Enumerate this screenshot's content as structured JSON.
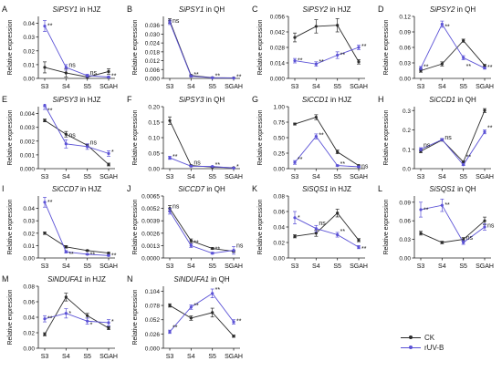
{
  "figure": {
    "x_categories": [
      "S3",
      "S4",
      "S5",
      "SGAH"
    ],
    "y_axis_label": "Relative expression",
    "colors": {
      "CK": "#2b2b2b",
      "rUV-B": "#5b52d6"
    },
    "legend": [
      {
        "key": "CK",
        "label": "CK"
      },
      {
        "key": "rUV-B",
        "label": "rUV-B"
      }
    ]
  },
  "chart_data": [
    {
      "type": "line",
      "letter": "A",
      "gene": "SiPSY1",
      "suffix": " in HJZ",
      "yticks": [
        "0.00",
        "0.01",
        "0.02",
        "0.03",
        "0.04"
      ],
      "ylim": [
        0,
        0.045
      ],
      "series": [
        {
          "name": "CK",
          "values": [
            0.008,
            0.004,
            0.001,
            0.005
          ],
          "errors": [
            0.004,
            0.003,
            0.001,
            0.002
          ]
        },
        {
          "name": "rUV-B",
          "values": [
            0.038,
            0.008,
            0.002,
            0.001
          ],
          "errors": [
            0.004,
            0.002,
            0.001,
            0.0005
          ]
        }
      ],
      "annotations": [
        {
          "text": "**",
          "at": 0,
          "value": 0.038
        },
        {
          "text": "ns",
          "at": 1,
          "value": 0.0095
        },
        {
          "text": "ns",
          "at": 2,
          "value": 0.004
        },
        {
          "text": "**",
          "at": 3,
          "value": 0.0015
        }
      ]
    },
    {
      "type": "line",
      "letter": "B",
      "gene": "SiPSY1",
      "suffix": " in QH",
      "yticks": [
        "0.000",
        "0.006",
        "0.012",
        "0.018",
        "0.024",
        "0.030",
        "0.036"
      ],
      "ylim": [
        0,
        0.042
      ],
      "series": [
        {
          "name": "CK",
          "values": [
            0.039,
            0.002,
            0.0005,
            0.0003
          ],
          "errors": [
            0.0015,
            0.0005,
            0.0003,
            0.0002
          ]
        },
        {
          "name": "rUV-B",
          "values": [
            0.038,
            0.0015,
            0.0004,
            0.0002
          ],
          "errors": [
            0.0015,
            0.0005,
            0.0003,
            0.0002
          ]
        }
      ],
      "annotations": [
        {
          "text": "ns",
          "at": 0,
          "value": 0.039
        },
        {
          "text": "**",
          "at": 1,
          "value": 0.0025
        },
        {
          "text": "**",
          "at": 2,
          "value": 0.0015
        },
        {
          "text": "**",
          "at": 3,
          "value": 0.001
        }
      ]
    },
    {
      "type": "line",
      "letter": "C",
      "gene": "SiPSY2",
      "suffix": " in HJZ",
      "yticks": [
        "0.000",
        "0.014",
        "0.028",
        "0.042",
        "0.056"
      ],
      "ylim": [
        0,
        0.056
      ],
      "series": [
        {
          "name": "CK",
          "values": [
            0.037,
            0.047,
            0.048,
            0.015
          ],
          "errors": [
            0.004,
            0.006,
            0.006,
            0.002
          ]
        },
        {
          "name": "rUV-B",
          "values": [
            0.016,
            0.013,
            0.021,
            0.028
          ],
          "errors": [
            0.002,
            0.002,
            0.003,
            0.002
          ]
        }
      ],
      "annotations": [
        {
          "text": "**",
          "at": 0,
          "value": 0.016
        },
        {
          "text": "**",
          "at": 1,
          "value": 0.015
        },
        {
          "text": "**",
          "at": 2,
          "value": 0.021
        },
        {
          "text": "**",
          "at": 3,
          "value": 0.029
        }
      ]
    },
    {
      "type": "line",
      "letter": "D",
      "gene": "SiPSY2",
      "suffix": " in QH",
      "yticks": [
        "0.00",
        "0.03",
        "0.06",
        "0.09",
        "0.12"
      ],
      "ylim": [
        0,
        0.12
      ],
      "series": [
        {
          "name": "CK",
          "values": [
            0.015,
            0.028,
            0.073,
            0.025
          ],
          "errors": [
            0.003,
            0.004,
            0.003,
            0.002
          ]
        },
        {
          "name": "rUV-B",
          "values": [
            0.02,
            0.105,
            0.04,
            0.02
          ],
          "errors": [
            0.003,
            0.006,
            0.004,
            0.002
          ]
        }
      ],
      "annotations": [
        {
          "text": "**",
          "at": 0,
          "value": 0.022
        },
        {
          "text": "**",
          "at": 1,
          "value": 0.1
        },
        {
          "text": "**",
          "at": 2,
          "value": 0.023
        },
        {
          "text": "**",
          "at": 3,
          "value": 0.021
        }
      ]
    },
    {
      "type": "line",
      "letter": "E",
      "gene": "SiPSY3",
      "suffix": " in HJZ",
      "yticks": [
        "0.000",
        "0.001",
        "0.002",
        "0.003",
        "0.004"
      ],
      "ylim": [
        0,
        0.0045
      ],
      "series": [
        {
          "name": "CK",
          "values": [
            0.0035,
            0.0025,
            0.0017,
            0.0003
          ],
          "errors": [
            0.0001,
            0.0002,
            0.0001,
            0.0001
          ]
        },
        {
          "name": "rUV-B",
          "values": [
            0.0046,
            0.0018,
            0.0016,
            0.0011
          ],
          "errors": [
            0.0003,
            0.0003,
            0.0002,
            0.0002
          ]
        }
      ],
      "annotations": [
        {
          "text": "**",
          "at": 0,
          "value": 0.0042
        },
        {
          "text": "ns",
          "at": 1,
          "value": 0.0024
        },
        {
          "text": "ns",
          "at": 2,
          "value": 0.0019
        },
        {
          "text": "*",
          "at": 3,
          "value": 0.0012
        }
      ]
    },
    {
      "type": "line",
      "letter": "F",
      "gene": "SiPSY3",
      "suffix": " in QH",
      "yticks": [
        "0.00",
        "0.05",
        "0.10",
        "0.15",
        "0.20"
      ],
      "ylim": [
        0,
        0.2
      ],
      "series": [
        {
          "name": "CK",
          "values": [
            0.155,
            0.01,
            0.005,
            0.003
          ],
          "errors": [
            0.012,
            0.002,
            0.001,
            0.001
          ]
        },
        {
          "name": "rUV-B",
          "values": [
            0.035,
            0.008,
            0.007,
            0.002
          ],
          "errors": [
            0.005,
            0.002,
            0.001,
            0.001
          ]
        }
      ],
      "annotations": [
        {
          "text": "**",
          "at": 0,
          "value": 0.038
        },
        {
          "text": "ns",
          "at": 1,
          "value": 0.019
        },
        {
          "text": "**",
          "at": 2,
          "value": 0.012
        },
        {
          "text": "*",
          "at": 3,
          "value": 0.006
        }
      ]
    },
    {
      "type": "line",
      "letter": "G",
      "gene": "SiCCD1",
      "suffix": " in HJZ",
      "yticks": [
        "0.00",
        "0.25",
        "0.50",
        "0.75",
        "1.00"
      ],
      "ylim": [
        0,
        1.0
      ],
      "series": [
        {
          "name": "CK",
          "values": [
            0.72,
            0.83,
            0.27,
            0.05
          ],
          "errors": [
            0.015,
            0.04,
            0.03,
            0.01
          ]
        },
        {
          "name": "rUV-B",
          "values": [
            0.1,
            0.52,
            0.05,
            0.03
          ],
          "errors": [
            0.03,
            0.04,
            0.01,
            0.01
          ]
        }
      ],
      "annotations": [
        {
          "text": "**",
          "at": 0,
          "value": 0.15
        },
        {
          "text": "**",
          "at": 1,
          "value": 0.54
        },
        {
          "text": "**",
          "at": 2,
          "value": 0.07
        },
        {
          "text": "ns",
          "at": 3,
          "value": 0.04
        }
      ]
    },
    {
      "type": "line",
      "letter": "H",
      "gene": "SiCCD1",
      "suffix": " in QH",
      "yticks": [
        "0.0",
        "0.1",
        "0.2",
        "0.3"
      ],
      "ylim": [
        0,
        0.32
      ],
      "series": [
        {
          "name": "CK",
          "values": [
            0.09,
            0.148,
            0.035,
            0.3
          ],
          "errors": [
            0.008,
            0.006,
            0.005,
            0.01
          ]
        },
        {
          "name": "rUV-B",
          "values": [
            0.1,
            0.15,
            0.02,
            0.19
          ],
          "errors": [
            0.008,
            0.006,
            0.004,
            0.01
          ]
        }
      ],
      "annotations": [
        {
          "text": "ns",
          "at": 0,
          "value": 0.12
        },
        {
          "text": "ns",
          "at": 1,
          "value": 0.16
        },
        {
          "text": "**",
          "at": 2,
          "value": 0.06
        },
        {
          "text": "**",
          "at": 3,
          "value": 0.21
        }
      ]
    },
    {
      "type": "line",
      "letter": "I",
      "gene": "SiCCD7",
      "suffix": " in HJZ",
      "yticks": [
        "0.00",
        "0.01",
        "0.02",
        "0.03",
        "0.04"
      ],
      "ylim": [
        0,
        0.05
      ],
      "series": [
        {
          "name": "CK",
          "values": [
            0.02,
            0.009,
            0.006,
            0.004
          ],
          "errors": [
            0.001,
            0.001,
            0.0005,
            0.0005
          ]
        },
        {
          "name": "rUV-B",
          "values": [
            0.045,
            0.005,
            0.003,
            0.002
          ],
          "errors": [
            0.004,
            0.001,
            0.0005,
            0.0005
          ]
        }
      ],
      "annotations": [
        {
          "text": "**",
          "at": 0,
          "value": 0.045
        },
        {
          "text": "**",
          "at": 1,
          "value": 0.003
        },
        {
          "text": "**",
          "at": 2,
          "value": 0.0025
        },
        {
          "text": "**",
          "at": 3,
          "value": 0.002
        }
      ]
    },
    {
      "type": "line",
      "letter": "J",
      "gene": "SiCCD7",
      "suffix": " in QH",
      "yticks": [
        "0.0000",
        "0.0013",
        "0.0026",
        "0.0039",
        "0.0052",
        "0.0065"
      ],
      "ylim": [
        0,
        0.0065
      ],
      "series": [
        {
          "name": "CK",
          "values": [
            0.0052,
            0.0018,
            0.001,
            0.0007
          ],
          "errors": [
            0.0003,
            0.0002,
            0.0001,
            0.0001
          ]
        },
        {
          "name": "rUV-B",
          "values": [
            0.0049,
            0.0013,
            0.0005,
            0.0008
          ],
          "errors": [
            0.0003,
            0.0002,
            0.0001,
            0.0004
          ]
        }
      ],
      "annotations": [
        {
          "text": "ns",
          "at": 0,
          "value": 0.0054
        },
        {
          "text": "**",
          "at": 1,
          "value": 0.0016
        },
        {
          "text": "**",
          "at": 2,
          "value": 0.0009
        },
        {
          "text": "ns",
          "at": 3,
          "value": 0.0013
        }
      ]
    },
    {
      "type": "line",
      "letter": "K",
      "gene": "SiSQS1",
      "suffix": " in HJZ",
      "yticks": [
        "0.00",
        "0.02",
        "0.04",
        "0.06",
        "0.08"
      ],
      "ylim": [
        0,
        0.08
      ],
      "series": [
        {
          "name": "CK",
          "values": [
            0.028,
            0.032,
            0.058,
            0.023
          ],
          "errors": [
            0.002,
            0.004,
            0.005,
            0.002
          ]
        },
        {
          "name": "rUV-B",
          "values": [
            0.052,
            0.038,
            0.03,
            0.014
          ],
          "errors": [
            0.008,
            0.004,
            0.003,
            0.002
          ]
        }
      ],
      "annotations": [
        {
          "text": "*",
          "at": 0,
          "value": 0.052
        },
        {
          "text": "ns",
          "at": 1,
          "value": 0.045
        },
        {
          "text": "**",
          "at": 2,
          "value": 0.034
        },
        {
          "text": "**",
          "at": 3,
          "value": 0.012
        }
      ]
    },
    {
      "type": "line",
      "letter": "L",
      "gene": "SiSQS1",
      "suffix": " in QH",
      "yticks": [
        "0.00",
        "0.03",
        "0.06",
        "0.09"
      ],
      "ylim": [
        0,
        0.1
      ],
      "series": [
        {
          "name": "CK",
          "values": [
            0.04,
            0.025,
            0.03,
            0.06
          ],
          "errors": [
            0.003,
            0.002,
            0.003,
            0.006
          ]
        },
        {
          "name": "rUV-B",
          "values": [
            0.078,
            0.085,
            0.025,
            0.05
          ],
          "errors": [
            0.012,
            0.01,
            0.003,
            0.005
          ]
        }
      ],
      "annotations": [
        {
          "text": "**",
          "at": 0,
          "value": 0.077
        },
        {
          "text": "**",
          "at": 1,
          "value": 0.085
        },
        {
          "text": "ns",
          "at": 2,
          "value": 0.032
        },
        {
          "text": "ns",
          "at": 3,
          "value": 0.052
        }
      ]
    },
    {
      "type": "line",
      "letter": "M",
      "gene": "SiNDUFA1",
      "suffix": " in HJZ",
      "yticks": [
        "0.00",
        "0.02",
        "0.04",
        "0.06",
        "0.08"
      ],
      "ylim": [
        0,
        0.08
      ],
      "series": [
        {
          "name": "CK",
          "values": [
            0.018,
            0.066,
            0.042,
            0.026
          ],
          "errors": [
            0.002,
            0.005,
            0.003,
            0.002
          ]
        },
        {
          "name": "rUV-B",
          "values": [
            0.038,
            0.045,
            0.035,
            0.033
          ],
          "errors": [
            0.004,
            0.006,
            0.004,
            0.004
          ]
        }
      ],
      "annotations": [
        {
          "text": "**",
          "at": 0,
          "value": 0.038
        },
        {
          "text": "*",
          "at": 1,
          "value": 0.045
        },
        {
          "text": "*",
          "at": 2,
          "value": 0.03
        },
        {
          "text": "*",
          "at": 3,
          "value": 0.034
        }
      ]
    },
    {
      "type": "line",
      "letter": "N",
      "gene": "SiNDUFA1",
      "suffix": " in QH",
      "yticks": [
        "0.000",
        "0.026",
        "0.052",
        "0.078",
        "0.104"
      ],
      "ylim": [
        0,
        0.113
      ],
      "series": [
        {
          "name": "CK",
          "values": [
            0.078,
            0.055,
            0.065,
            0.022
          ],
          "errors": [
            0.003,
            0.004,
            0.008,
            0.002
          ]
        },
        {
          "name": "rUV-B",
          "values": [
            0.03,
            0.075,
            0.1,
            0.048
          ],
          "errors": [
            0.003,
            0.004,
            0.008,
            0.004
          ]
        }
      ],
      "annotations": [
        {
          "text": "**",
          "at": 0,
          "value": 0.037
        },
        {
          "text": "**",
          "at": 1,
          "value": 0.077
        },
        {
          "text": "**",
          "at": 2,
          "value": 0.108
        },
        {
          "text": "**",
          "at": 3,
          "value": 0.049
        }
      ]
    }
  ]
}
